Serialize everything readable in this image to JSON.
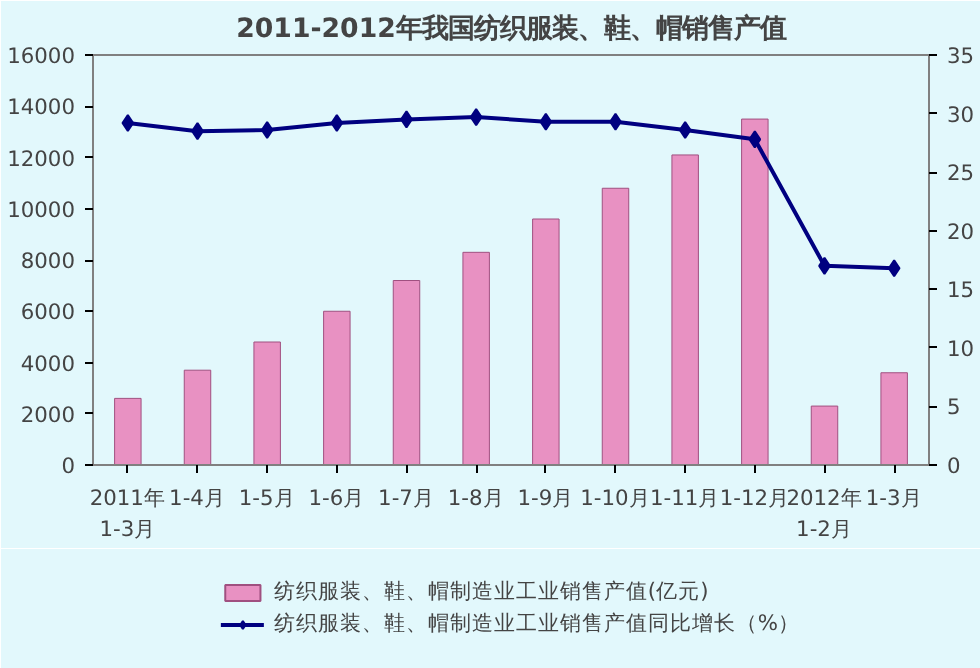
{
  "chart_data": {
    "type": "bar",
    "title": "2011-2012年我国纺织服装、鞋、帽销售产值",
    "categories": [
      "2011年\n1-3月",
      "1-4月",
      "1-5月",
      "1-6月",
      "1-7月",
      "1-8月",
      "1-9月",
      "1-10月",
      "1-11月",
      "1-12月",
      "2012年\n1-2月",
      "1-3月"
    ],
    "series": [
      {
        "name": "纺织服装、鞋、帽制造业工业销售产值(亿元)",
        "color": "#e891c2",
        "values": [
          2600,
          3700,
          4800,
          6000,
          7200,
          8300,
          9600,
          10800,
          12100,
          13500,
          2300,
          3600
        ]
      },
      {
        "name": "纺织服装、鞋、帽制造业工业销售产值同比增长（%）",
        "type": "line",
        "axis": "y2",
        "color": "#000080",
        "values": [
          29.2,
          28.5,
          28.6,
          29.2,
          29.5,
          29.7,
          29.3,
          29.3,
          28.6,
          27.8,
          17.0,
          16.8
        ]
      }
    ],
    "ylim": [
      0,
      16000
    ],
    "yticks": [
      0,
      2000,
      4000,
      6000,
      8000,
      10000,
      12000,
      14000,
      16000
    ],
    "y2lim": [
      0,
      35
    ],
    "y2ticks": [
      0,
      5,
      10,
      15,
      20,
      25,
      30,
      35
    ],
    "grid": false,
    "legend": "bottom",
    "marker": "diamond",
    "line_style": "solid"
  }
}
